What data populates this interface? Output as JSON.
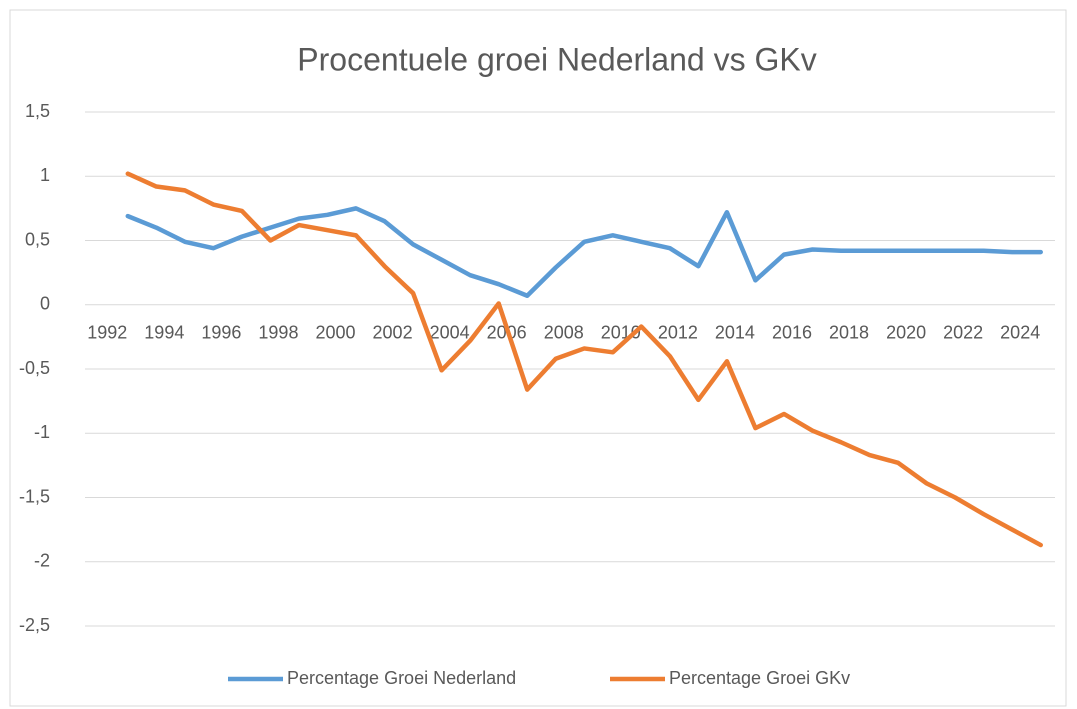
{
  "chart_data": {
    "type": "line",
    "title": "Procentuele groei Nederland vs GKv",
    "categories": [
      "1992",
      null,
      "1994",
      null,
      "1996",
      null,
      "1998",
      null,
      "2000",
      null,
      "2002",
      null,
      "2004",
      null,
      "2006",
      null,
      "2008",
      null,
      "2010",
      null,
      "2012",
      null,
      "2014",
      null,
      "2016",
      null,
      "2018",
      null,
      "2020",
      null,
      "2022",
      null,
      "2024",
      null
    ],
    "series": [
      {
        "name": "Percentage Groei Nederland",
        "color": "#5b9bd5",
        "values": [
          null,
          0.69,
          0.6,
          0.49,
          0.44,
          0.53,
          0.6,
          0.67,
          0.7,
          0.75,
          0.65,
          0.47,
          0.35,
          0.23,
          0.16,
          0.07,
          0.29,
          0.49,
          0.54,
          0.49,
          0.44,
          0.3,
          0.72,
          0.19,
          0.39,
          0.43,
          0.42,
          0.42,
          0.42,
          0.42,
          0.42,
          0.42,
          0.41,
          0.41
        ]
      },
      {
        "name": "Percentage Groei GKv",
        "color": "#ed7d31",
        "values": [
          null,
          1.02,
          0.92,
          0.89,
          0.78,
          0.73,
          0.5,
          0.62,
          0.58,
          0.54,
          0.3,
          0.09,
          -0.51,
          -0.28,
          0.01,
          -0.66,
          -0.42,
          -0.34,
          -0.37,
          -0.17,
          -0.4,
          -0.74,
          -0.44,
          -0.96,
          -0.85,
          -0.98,
          -1.07,
          -1.17,
          -1.23,
          -1.39,
          -1.5,
          -1.63,
          -1.75,
          -1.87
        ]
      }
    ],
    "ylim": [
      -2.5,
      1.5
    ],
    "yticks": [
      {
        "value": -2.5,
        "label": "-2,5"
      },
      -2,
      {
        "value": -1.5,
        "label": "-1,5"
      },
      -1,
      {
        "value": -0.5,
        "label": "-0,5"
      },
      0,
      {
        "value": 0.5,
        "label": "0,5"
      },
      1,
      {
        "value": 1.5,
        "label": "1,5"
      }
    ],
    "grid": true,
    "legend": "bottom"
  }
}
